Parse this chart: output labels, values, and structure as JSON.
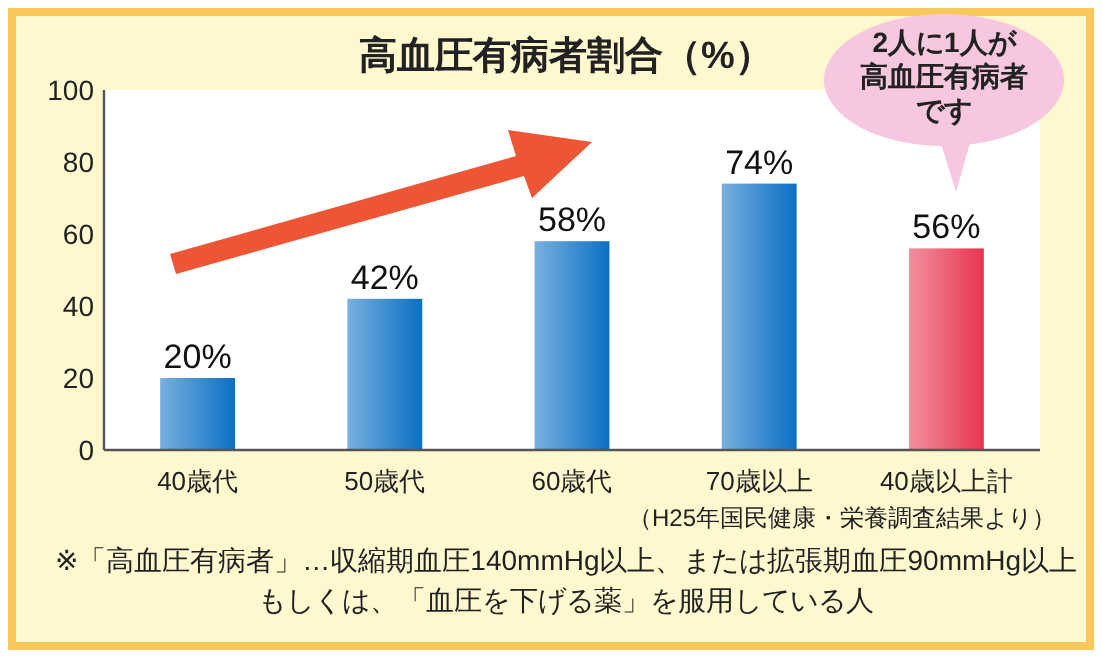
{
  "chart_data": {
    "type": "bar",
    "title": "高血圧有病者割合（%）",
    "categories": [
      "40歳代",
      "50歳代",
      "60歳代",
      "70歳以上",
      "40歳以上計"
    ],
    "values": [
      20,
      42,
      58,
      74,
      56
    ],
    "colors": [
      "#0a6fc4",
      "#0a6fc4",
      "#0a6fc4",
      "#0a6fc4",
      "#e8344f"
    ],
    "value_labels": [
      "20%",
      "42%",
      "58%",
      "74%",
      "56%"
    ],
    "ylim": [
      0,
      100
    ],
    "yticks": [
      0,
      20,
      40,
      60,
      80,
      100
    ],
    "grid": false,
    "annotations": [
      "2人に1人が",
      "高血圧有病者",
      "です",
      "（H25年国民健康・栄養調査結果より）",
      "※「高血圧有病者」…収縮期血圧140mmHg以上、または拡張期血圧90mmHg以上",
      "もしくは、「血圧を下げる薬」を服用している人"
    ]
  }
}
